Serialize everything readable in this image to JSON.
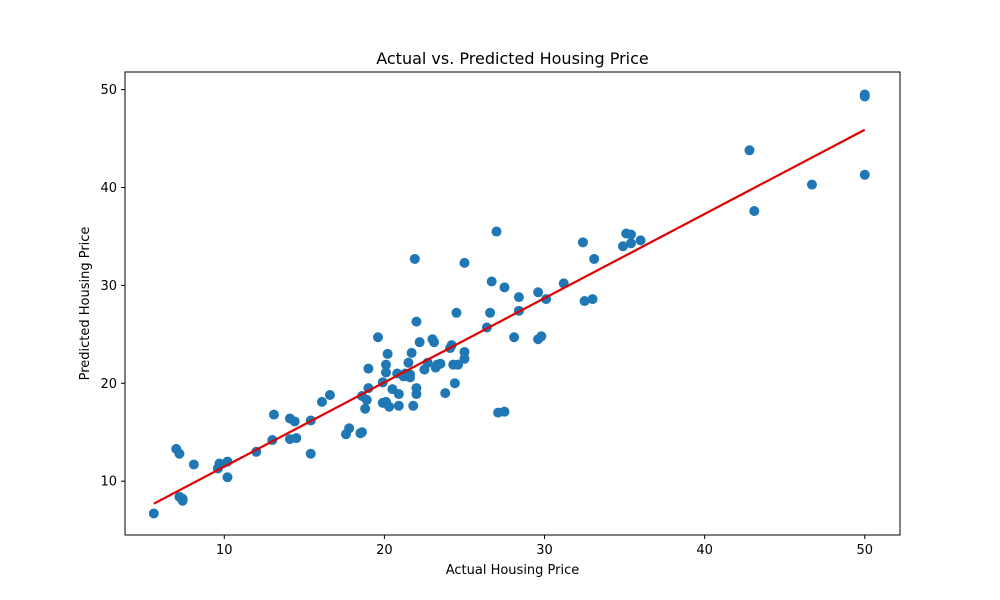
{
  "chart_data": {
    "type": "scatter",
    "title": "Actual vs. Predicted Housing Price",
    "xlabel": "Actual Housing Price",
    "ylabel": "Predicted Housing Price",
    "xlim": [
      3.8,
      52.2
    ],
    "ylim": [
      4.5,
      51.8
    ],
    "xticks": [
      10,
      20,
      30,
      40,
      50
    ],
    "yticks": [
      10,
      20,
      30,
      40,
      50
    ],
    "grid": false,
    "colors": {
      "points": "#1f77b4",
      "fit_line": "#e00000"
    },
    "series": [
      {
        "kind": "points",
        "values": [
          [
            5.6,
            6.7
          ],
          [
            7.0,
            13.3
          ],
          [
            7.2,
            12.8
          ],
          [
            7.2,
            8.4
          ],
          [
            7.4,
            8.2
          ],
          [
            7.4,
            8.0
          ],
          [
            8.1,
            11.7
          ],
          [
            9.6,
            11.3
          ],
          [
            9.7,
            11.8
          ],
          [
            10.2,
            12.0
          ],
          [
            10.2,
            10.4
          ],
          [
            12.0,
            13.0
          ],
          [
            13.0,
            14.2
          ],
          [
            13.1,
            16.8
          ],
          [
            14.1,
            16.4
          ],
          [
            14.1,
            14.3
          ],
          [
            14.4,
            16.1
          ],
          [
            14.5,
            14.4
          ],
          [
            15.4,
            16.2
          ],
          [
            15.4,
            12.8
          ],
          [
            16.1,
            18.1
          ],
          [
            16.6,
            18.8
          ],
          [
            17.6,
            14.8
          ],
          [
            17.8,
            15.4
          ],
          [
            18.5,
            14.9
          ],
          [
            18.6,
            15.0
          ],
          [
            18.6,
            18.7
          ],
          [
            18.8,
            17.4
          ],
          [
            18.9,
            18.3
          ],
          [
            19.0,
            21.5
          ],
          [
            19.0,
            19.5
          ],
          [
            19.6,
            24.7
          ],
          [
            19.9,
            20.1
          ],
          [
            19.9,
            18.0
          ],
          [
            20.1,
            18.1
          ],
          [
            20.1,
            21.1
          ],
          [
            20.1,
            21.9
          ],
          [
            20.2,
            23.0
          ],
          [
            20.3,
            17.6
          ],
          [
            20.5,
            19.4
          ],
          [
            20.8,
            21.0
          ],
          [
            20.9,
            17.7
          ],
          [
            20.9,
            18.9
          ],
          [
            21.2,
            20.7
          ],
          [
            21.3,
            21.0
          ],
          [
            21.5,
            22.1
          ],
          [
            21.6,
            20.9
          ],
          [
            21.6,
            20.6
          ],
          [
            21.7,
            23.1
          ],
          [
            21.8,
            17.7
          ],
          [
            21.9,
            32.7
          ],
          [
            22.0,
            18.9
          ],
          [
            22.0,
            19.5
          ],
          [
            22.0,
            26.3
          ],
          [
            22.2,
            24.2
          ],
          [
            22.5,
            21.4
          ],
          [
            22.7,
            22.1
          ],
          [
            23.0,
            24.5
          ],
          [
            23.1,
            24.2
          ],
          [
            23.2,
            21.6
          ],
          [
            23.3,
            21.9
          ],
          [
            23.5,
            22.0
          ],
          [
            23.8,
            19.0
          ],
          [
            24.1,
            23.6
          ],
          [
            24.2,
            23.9
          ],
          [
            24.3,
            21.9
          ],
          [
            24.4,
            20.0
          ],
          [
            24.5,
            27.2
          ],
          [
            24.6,
            21.9
          ],
          [
            25.0,
            32.3
          ],
          [
            25.0,
            22.5
          ],
          [
            25.0,
            23.2
          ],
          [
            26.4,
            25.7
          ],
          [
            26.6,
            27.2
          ],
          [
            26.7,
            30.4
          ],
          [
            27.0,
            35.5
          ],
          [
            27.1,
            17.0
          ],
          [
            27.5,
            17.1
          ],
          [
            27.5,
            29.8
          ],
          [
            28.1,
            24.7
          ],
          [
            28.4,
            28.8
          ],
          [
            28.4,
            27.4
          ],
          [
            29.6,
            29.3
          ],
          [
            29.6,
            24.5
          ],
          [
            29.8,
            24.8
          ],
          [
            30.1,
            28.6
          ],
          [
            31.2,
            30.2
          ],
          [
            32.4,
            34.4
          ],
          [
            32.5,
            28.4
          ],
          [
            33.0,
            28.6
          ],
          [
            33.1,
            32.7
          ],
          [
            34.9,
            34.0
          ],
          [
            35.1,
            35.3
          ],
          [
            35.4,
            34.3
          ],
          [
            35.4,
            35.2
          ],
          [
            36.0,
            34.6
          ],
          [
            42.8,
            43.8
          ],
          [
            43.1,
            37.6
          ],
          [
            46.7,
            40.3
          ],
          [
            50.0,
            49.5
          ],
          [
            50.0,
            49.3
          ],
          [
            50.0,
            41.3
          ]
        ]
      },
      {
        "kind": "fit_line",
        "x": [
          5.6,
          50.0
        ],
        "y": [
          7.7,
          45.9
        ]
      }
    ]
  }
}
